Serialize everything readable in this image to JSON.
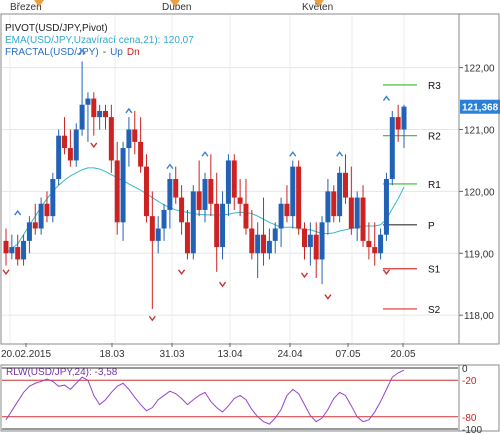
{
  "months": [
    {
      "label": "Březen"
    },
    {
      "label": "Duben"
    },
    {
      "label": "Květen"
    }
  ],
  "legend": {
    "pivot": "PIVOT(USD/JPY,Pivot)",
    "ema": "EMA(USD/JPY,Uzavírací cena,21): 120,07",
    "fractal": "FRACTAL(USD/JPY)",
    "fractal_up": "Up",
    "fractal_dn": "Dn"
  },
  "colors": {
    "up": "#2262b6",
    "down": "#cc2222",
    "ema": "#33bbcc",
    "fractal_up": "#3a7fd0",
    "fractal_down": "#cc3333",
    "resistance": "#33bb33",
    "support": "#dd3333",
    "pivot_line": "#333333",
    "rlw": "#9944cc",
    "price_badge": "#2a7fd6"
  },
  "price_axis": {
    "ticks": [
      "122,00",
      "121,00",
      "120,00",
      "119,00",
      "118,00"
    ],
    "current": "121,368"
  },
  "pivots": [
    {
      "name": "R3",
      "value": 121.72,
      "kind": "resistance"
    },
    {
      "name": "R2",
      "value": 120.9,
      "kind": "resistance"
    },
    {
      "name": "R1",
      "value": 120.12,
      "kind": "resistance"
    },
    {
      "name": "P",
      "value": 119.46,
      "kind": "pivot"
    },
    {
      "name": "S1",
      "value": 118.75,
      "kind": "support"
    },
    {
      "name": "S2",
      "value": 118.1,
      "kind": "support"
    }
  ],
  "date_axis": [
    "20.02.2015",
    "18.03",
    "31.03",
    "13.04",
    "24.04",
    "07.05",
    "20.05"
  ],
  "candles": [
    [
      119.2,
      119.4,
      118.8,
      119.0
    ],
    [
      119.0,
      119.3,
      118.9,
      119.1
    ],
    [
      119.1,
      119.3,
      118.8,
      118.9
    ],
    [
      118.9,
      119.3,
      118.8,
      119.2
    ],
    [
      119.2,
      119.6,
      119.0,
      119.5
    ],
    [
      119.5,
      119.8,
      119.3,
      119.4
    ],
    [
      119.4,
      119.9,
      119.3,
      119.8
    ],
    [
      119.8,
      120.0,
      119.5,
      119.6
    ],
    [
      119.6,
      120.3,
      119.5,
      120.2
    ],
    [
      120.2,
      121.0,
      120.1,
      120.9
    ],
    [
      120.9,
      121.2,
      120.6,
      120.7
    ],
    [
      120.7,
      121.0,
      120.4,
      120.5
    ],
    [
      120.5,
      121.1,
      120.4,
      121.0
    ],
    [
      121.0,
      122.1,
      120.9,
      121.4
    ],
    [
      121.4,
      121.6,
      120.8,
      121.5
    ],
    [
      121.5,
      121.6,
      120.9,
      121.2
    ],
    [
      121.2,
      121.4,
      121.0,
      121.3
    ],
    [
      121.3,
      121.4,
      121.0,
      121.2
    ],
    [
      121.2,
      121.4,
      120.3,
      120.5
    ],
    [
      120.5,
      120.8,
      119.3,
      119.5
    ],
    [
      119.5,
      120.8,
      119.2,
      120.7
    ],
    [
      120.7,
      121.2,
      120.4,
      121.0
    ],
    [
      121.0,
      121.3,
      120.6,
      120.8
    ],
    [
      120.8,
      121.2,
      120.3,
      120.4
    ],
    [
      120.4,
      120.6,
      119.5,
      119.6
    ],
    [
      119.6,
      120.0,
      118.1,
      119.2
    ],
    [
      119.2,
      119.6,
      119.0,
      119.4
    ],
    [
      119.4,
      119.8,
      119.2,
      119.7
    ],
    [
      119.7,
      120.3,
      119.4,
      120.2
    ],
    [
      120.2,
      120.4,
      119.8,
      119.9
    ],
    [
      119.9,
      120.1,
      119.3,
      119.5
    ],
    [
      119.5,
      119.7,
      118.9,
      119.0
    ],
    [
      119.0,
      120.1,
      118.9,
      120.0
    ],
    [
      120.0,
      120.5,
      119.6,
      119.7
    ],
    [
      119.7,
      120.3,
      119.5,
      120.2
    ],
    [
      120.2,
      120.6,
      119.6,
      119.8
    ],
    [
      119.8,
      120.3,
      118.7,
      119.1
    ],
    [
      119.1,
      120.0,
      118.9,
      119.8
    ],
    [
      119.8,
      120.6,
      119.6,
      120.5
    ],
    [
      120.5,
      120.6,
      119.7,
      119.9
    ],
    [
      119.9,
      120.2,
      119.6,
      119.8
    ],
    [
      119.8,
      120.2,
      119.3,
      119.4
    ],
    [
      119.4,
      119.7,
      118.9,
      119.0
    ],
    [
      119.0,
      119.5,
      118.6,
      119.3
    ],
    [
      119.3,
      119.9,
      118.8,
      119.0
    ],
    [
      119.0,
      119.4,
      118.9,
      119.2
    ],
    [
      119.2,
      119.5,
      119.0,
      119.4
    ],
    [
      119.4,
      119.9,
      119.1,
      119.8
    ],
    [
      119.8,
      120.1,
      119.5,
      119.6
    ],
    [
      119.6,
      120.5,
      119.4,
      120.4
    ],
    [
      120.4,
      120.5,
      119.3,
      119.4
    ],
    [
      119.4,
      119.5,
      118.9,
      119.1
    ],
    [
      119.1,
      119.5,
      118.8,
      119.3
    ],
    [
      119.3,
      119.5,
      118.6,
      118.9
    ],
    [
      118.9,
      119.6,
      118.5,
      119.5
    ],
    [
      119.5,
      120.2,
      119.3,
      120.0
    ],
    [
      120.0,
      120.1,
      119.5,
      119.6
    ],
    [
      119.6,
      120.4,
      119.5,
      120.3
    ],
    [
      120.3,
      120.6,
      119.8,
      119.9
    ],
    [
      119.9,
      120.4,
      119.3,
      119.4
    ],
    [
      119.4,
      120.0,
      119.2,
      119.9
    ],
    [
      119.9,
      120.1,
      119.1,
      119.2
    ],
    [
      119.2,
      119.5,
      118.9,
      119.1
    ],
    [
      119.1,
      119.5,
      118.8,
      119.0
    ],
    [
      119.0,
      119.4,
      118.9,
      119.3
    ],
    [
      119.3,
      120.3,
      119.2,
      120.2
    ],
    [
      120.2,
      121.3,
      120.1,
      121.2
    ],
    [
      121.2,
      121.4,
      120.8,
      121.0
    ],
    [
      121.0,
      121.4,
      120.7,
      121.37
    ]
  ],
  "ema": [
    119.0,
    119.08,
    119.15,
    119.3,
    119.45,
    119.6,
    119.75,
    119.88,
    120.0,
    120.1,
    120.18,
    120.25,
    120.3,
    120.35,
    120.38,
    120.38,
    120.36,
    120.32,
    120.27,
    120.22,
    120.17,
    120.12,
    120.07,
    120.02,
    119.96,
    119.9,
    119.84,
    119.78,
    119.74,
    119.7,
    119.68,
    119.66,
    119.64,
    119.63,
    119.62,
    119.62,
    119.62,
    119.62,
    119.63,
    119.65,
    119.66,
    119.66,
    119.64,
    119.6,
    119.55,
    119.5,
    119.46,
    119.42,
    119.42,
    119.42,
    119.4,
    119.38,
    119.38,
    119.35,
    119.32,
    119.32,
    119.33,
    119.36,
    119.38,
    119.4,
    119.42,
    119.44,
    119.44,
    119.44,
    119.46,
    119.55,
    119.72,
    119.88,
    120.07
  ],
  "fractals_up": [
    [
      2,
      119.65
    ],
    [
      13,
      122.25
    ],
    [
      21,
      121.3
    ],
    [
      28,
      120.4
    ],
    [
      34,
      120.6
    ],
    [
      49,
      120.6
    ],
    [
      57,
      120.6
    ],
    [
      65,
      121.5
    ]
  ],
  "fractals_down": [
    [
      0,
      118.7
    ],
    [
      15,
      120.75
    ],
    [
      25,
      117.95
    ],
    [
      30,
      118.7
    ],
    [
      37,
      118.5
    ],
    [
      51,
      118.65
    ],
    [
      55,
      118.3
    ],
    [
      65,
      118.7
    ]
  ],
  "rlw": {
    "label": "RLW(USD/JPY,24): -3,58",
    "levels": {
      "top": "0",
      "upper": "-20",
      "lower": "-80",
      "bottom": "-100"
    },
    "values": [
      -85,
      -70,
      -55,
      -40,
      -30,
      -25,
      -22,
      -18,
      -22,
      -30,
      -28,
      -35,
      -25,
      -15,
      -20,
      -45,
      -60,
      -52,
      -40,
      -30,
      -25,
      -35,
      -48,
      -60,
      -70,
      -65,
      -52,
      -45,
      -38,
      -42,
      -50,
      -60,
      -52,
      -45,
      -40,
      -55,
      -65,
      -72,
      -62,
      -50,
      -45,
      -52,
      -68,
      -80,
      -88,
      -92,
      -82,
      -68,
      -45,
      -35,
      -42,
      -60,
      -78,
      -88,
      -82,
      -68,
      -50,
      -40,
      -45,
      -62,
      -80,
      -88,
      -85,
      -72,
      -55,
      -35,
      -15,
      -8,
      -3.58
    ]
  }
}
